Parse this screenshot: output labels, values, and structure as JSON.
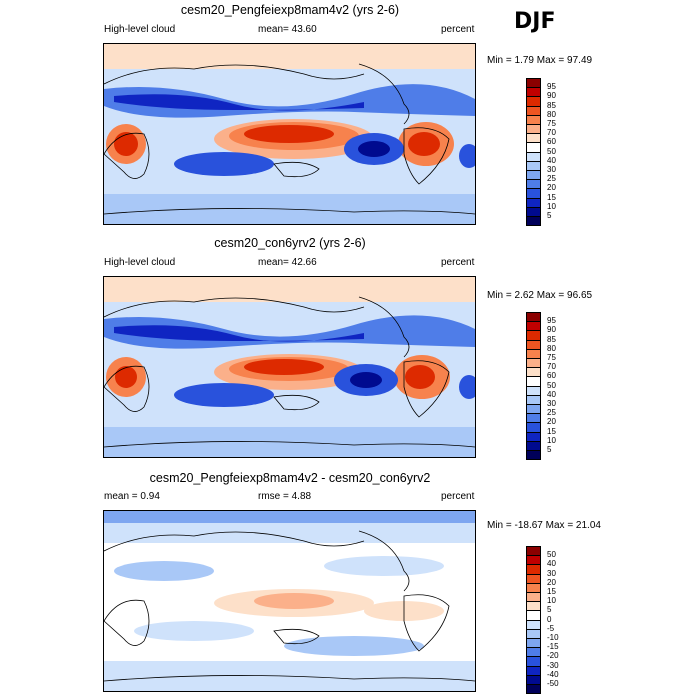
{
  "season": "DJF",
  "panels": [
    {
      "title": "cesm20_Pengfeiexp8mam4v2 (yrs 2-6)",
      "left_label": "High-level cloud",
      "center_label": "mean=  43.60",
      "right_label": "percent",
      "minmax": "Min =   1.79 Max =  97.49",
      "levels": [
        "95",
        "90",
        "85",
        "80",
        "75",
        "70",
        "60",
        "50",
        "40",
        "30",
        "25",
        "20",
        "15",
        "10",
        "5"
      ],
      "colors": [
        "#8b0000",
        "#c00000",
        "#dd2a00",
        "#ee5522",
        "#f7824d",
        "#fbb08a",
        "#fde0c9",
        "#ffffff",
        "#cfe2fb",
        "#a9c8f7",
        "#7ea6f0",
        "#4f7de8",
        "#2952dc",
        "#0f25c2",
        "#000a8f",
        "#00005a"
      ]
    },
    {
      "title": "cesm20_con6yrv2 (yrs 2-6)",
      "left_label": "High-level cloud",
      "center_label": "mean=  42.66",
      "right_label": "percent",
      "minmax": "Min =   2.62 Max =  96.65",
      "levels": [
        "95",
        "90",
        "85",
        "80",
        "75",
        "70",
        "60",
        "50",
        "40",
        "30",
        "25",
        "20",
        "15",
        "10",
        "5"
      ],
      "colors": [
        "#8b0000",
        "#c00000",
        "#dd2a00",
        "#ee5522",
        "#f7824d",
        "#fbb08a",
        "#fde0c9",
        "#ffffff",
        "#cfe2fb",
        "#a9c8f7",
        "#7ea6f0",
        "#4f7de8",
        "#2952dc",
        "#0f25c2",
        "#000a8f",
        "#00005a"
      ]
    },
    {
      "title": "cesm20_Pengfeiexp8mam4v2 - cesm20_con6yrv2",
      "left_label": "mean =   0.94",
      "center_label": "rmse =   4.88",
      "right_label": "percent",
      "minmax": "Min = -18.67 Max =  21.04",
      "levels": [
        "50",
        "40",
        "30",
        "20",
        "15",
        "10",
        "5",
        "0",
        "-5",
        "-10",
        "-15",
        "-20",
        "-30",
        "-40",
        "-50"
      ],
      "colors": [
        "#8b0000",
        "#c00000",
        "#dd2a00",
        "#ee5522",
        "#f7824d",
        "#fbb08a",
        "#fde0c9",
        "#ffffff",
        "#cfe2fb",
        "#a9c8f7",
        "#7ea6f0",
        "#4f7de8",
        "#2952dc",
        "#0f25c2",
        "#000a8f",
        "#00005a"
      ]
    }
  ],
  "chart_data": {
    "type": "heatmap",
    "variable": "High-level cloud",
    "units": "percent",
    "season": "DJF",
    "maps": [
      {
        "title": "cesm20_Pengfeiexp8mam4v2 (yrs 2-6)",
        "mean": 43.6,
        "min": 1.79,
        "max": 97.49
      },
      {
        "title": "cesm20_con6yrv2 (yrs 2-6)",
        "mean": 42.66,
        "min": 2.62,
        "max": 96.65
      },
      {
        "title": "cesm20_Pengfeiexp8mam4v2 - cesm20_con6yrv2",
        "mean": 0.94,
        "rmse": 4.88,
        "min": -18.67,
        "max": 21.04
      }
    ]
  }
}
